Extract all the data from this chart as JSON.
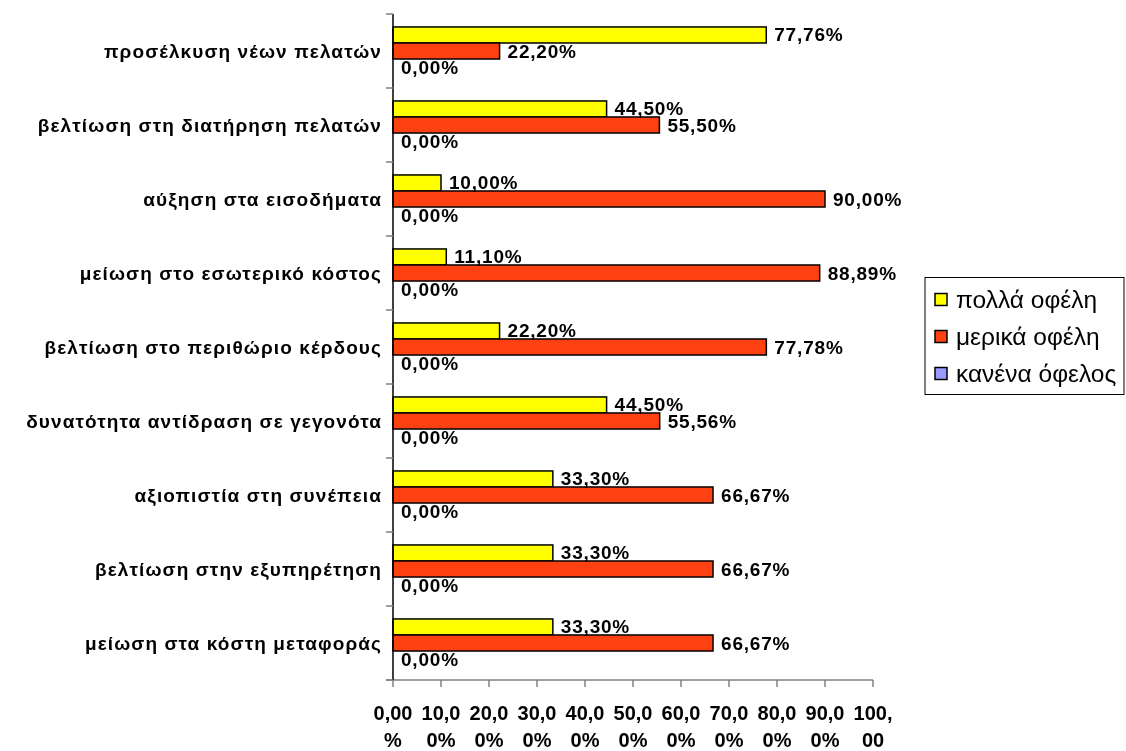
{
  "chart_data": {
    "type": "bar",
    "orientation": "horizontal",
    "categories": [
      "προσέλκυση νέων πελατών",
      "βελτίωση στη διατήρηση πελατών",
      "αύξηση στα εισοδήματα",
      "μείωση στο εσωτερικό κόστος",
      "βελτίωση στο περιθώριο κέρδους",
      "δυνατότητα αντίδραση σε γεγονότα",
      "αξιοπιστία στη συνέπεια",
      "βελτίωση στην εξυπηρέτηση",
      "μείωση στα κόστη μεταφοράς"
    ],
    "series": [
      {
        "name": "πολλά οφέλη",
        "color": "#ffff00",
        "values": [
          77.76,
          44.5,
          10,
          11.1,
          22.2,
          44.5,
          33.3,
          33.3,
          33.3
        ],
        "value_labels": [
          "77,76%",
          "44,50%",
          "10,00%",
          "11,10%",
          "22,20%",
          "44,50%",
          "33,30%",
          "33,30%",
          "33,30%"
        ]
      },
      {
        "name": "μερικά οφέλη",
        "color": "#ff4010",
        "values": [
          22.2,
          55.5,
          90,
          88.89,
          77.78,
          55.56,
          66.67,
          66.67,
          66.67
        ],
        "value_labels": [
          "22,20%",
          "55,50%",
          "90,00%",
          "88,89%",
          "77,78%",
          "55,56%",
          "66,67%",
          "66,67%",
          "66,67%"
        ]
      },
      {
        "name": "κανένα όφελος",
        "color": "#9999ff",
        "values": [
          0,
          0,
          0,
          0,
          0,
          0,
          0,
          0,
          0
        ],
        "value_labels": [
          "0,00%",
          "0,00%",
          "0,00%",
          "0,00%",
          "0,00%",
          "0,00%",
          "0,00%",
          "0,00%",
          "0,00%"
        ]
      }
    ],
    "xlim": [
      0,
      100
    ],
    "xticks": [
      {
        "value": 0,
        "label": "0,00%"
      },
      {
        "value": 10,
        "label": "10,00%"
      },
      {
        "value": 20,
        "label": "20,00%"
      },
      {
        "value": 30,
        "label": "30,00%"
      },
      {
        "value": 40,
        "label": "40,00%"
      },
      {
        "value": 50,
        "label": "50,00%"
      },
      {
        "value": 60,
        "label": "60,00%"
      },
      {
        "value": 70,
        "label": "70,00%"
      },
      {
        "value": 80,
        "label": "80,00%"
      },
      {
        "value": 90,
        "label": "90,00%"
      },
      {
        "value": 100,
        "label": "100,00"
      }
    ],
    "legend": "right"
  }
}
